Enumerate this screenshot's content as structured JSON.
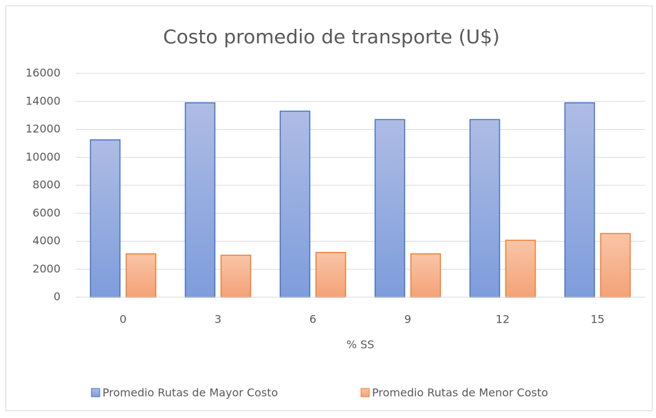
{
  "chart_data": {
    "type": "bar",
    "title": "Costo promedio de transporte (U$)",
    "x_label": "% SS",
    "categories": [
      "0",
      "3",
      "6",
      "9",
      "12",
      "15"
    ],
    "series": [
      {
        "name": "Promedio Rutas de Mayor Costo",
        "color": "#4472c4",
        "values": [
          11250,
          13900,
          13300,
          12700,
          12700,
          13900
        ]
      },
      {
        "name": "Promedio Rutas de Menor Costo",
        "color": "#ed7d31",
        "values": [
          3100,
          3000,
          3200,
          3100,
          4070,
          4550
        ]
      }
    ],
    "ylim": [
      0,
      16000
    ],
    "yticks": [
      0,
      2000,
      4000,
      6000,
      8000,
      10000,
      12000,
      14000,
      16000
    ],
    "grid": true,
    "legend": "bottom"
  }
}
